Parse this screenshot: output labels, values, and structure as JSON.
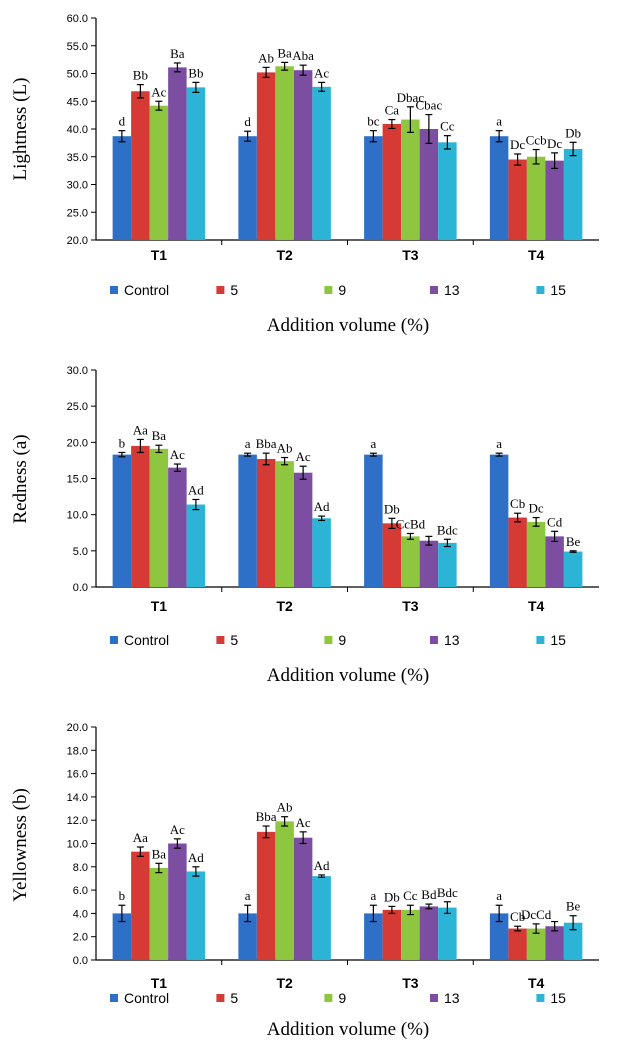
{
  "colors": {
    "Control": "#2e6fc7",
    "5": "#d63a34",
    "9": "#8ec63f",
    "13": "#7b4ea2",
    "15": "#2cb4d6"
  },
  "chart_data": [
    {
      "type": "bar",
      "ylabel": "Lightness (L)",
      "xlabel": "Addition volume (%)",
      "ylim": [
        20,
        60
      ],
      "yticks": [
        "20.0",
        "25.0",
        "30.0",
        "35.0",
        "40.0",
        "45.0",
        "50.0",
        "55.0",
        "60.0"
      ],
      "categories": [
        "T1",
        "T2",
        "T3",
        "T4"
      ],
      "legend": "bottom",
      "series": [
        {
          "name": "Control",
          "values": [
            38.7,
            38.7,
            38.7,
            38.7
          ],
          "errors": [
            1.0,
            0.9,
            1.0,
            1.0
          ],
          "labels": [
            "d",
            "d",
            "bc",
            "a"
          ]
        },
        {
          "name": "5",
          "values": [
            46.8,
            50.2,
            40.9,
            34.5
          ],
          "errors": [
            1.2,
            0.9,
            0.8,
            1.0
          ],
          "labels": [
            "Bb",
            "Ab",
            "Ca",
            "Dc"
          ]
        },
        {
          "name": "9",
          "values": [
            44.2,
            51.3,
            41.7,
            35.0
          ],
          "errors": [
            0.8,
            0.7,
            2.3,
            1.3
          ],
          "labels": [
            "Ac",
            "Ba",
            "Dbac",
            "Ccb"
          ]
        },
        {
          "name": "13",
          "values": [
            51.1,
            50.6,
            40.0,
            34.3
          ],
          "errors": [
            0.8,
            0.9,
            2.6,
            1.4
          ],
          "labels": [
            "Ba",
            "Aba",
            "Cbac",
            "Dc"
          ]
        },
        {
          "name": "15",
          "values": [
            47.5,
            47.6,
            37.6,
            36.4
          ],
          "errors": [
            0.9,
            0.8,
            1.2,
            1.2
          ],
          "labels": [
            "Bb",
            "Ac",
            "Cc",
            "Db"
          ]
        }
      ]
    },
    {
      "type": "bar",
      "ylabel": "Redness (a)",
      "xlabel": "Addition volume (%)",
      "ylim": [
        0,
        30
      ],
      "yticks": [
        "0.0",
        "5.0",
        "10.0",
        "15.0",
        "20.0",
        "25.0",
        "30.0"
      ],
      "categories": [
        "T1",
        "T2",
        "T3",
        "T4"
      ],
      "legend": "bottom",
      "series": [
        {
          "name": "Control",
          "values": [
            18.3,
            18.3,
            18.3,
            18.3
          ],
          "errors": [
            0.3,
            0.2,
            0.2,
            0.2
          ],
          "labels": [
            "b",
            "a",
            "a",
            "a"
          ]
        },
        {
          "name": "5",
          "values": [
            19.5,
            17.7,
            8.8,
            9.6
          ],
          "errors": [
            0.9,
            0.8,
            0.7,
            0.6
          ],
          "labels": [
            "Aa",
            "Bba",
            "Db",
            "Cb"
          ]
        },
        {
          "name": "9",
          "values": [
            19.1,
            17.4,
            7.0,
            9.0
          ],
          "errors": [
            0.5,
            0.5,
            0.4,
            0.6
          ],
          "labels": [
            "Ba",
            "Ab",
            "CcBd",
            "Dc"
          ]
        },
        {
          "name": "13",
          "values": [
            16.5,
            15.8,
            6.4,
            7.0
          ],
          "errors": [
            0.5,
            0.9,
            0.6,
            0.7
          ],
          "labels": [
            "Ac",
            "Ac",
            "",
            "Cd"
          ]
        },
        {
          "name": "15",
          "values": [
            11.4,
            9.5,
            6.1,
            4.9
          ],
          "errors": [
            0.7,
            0.3,
            0.5,
            0.1
          ],
          "labels": [
            "Ad",
            "Ad",
            "Bdc",
            "Be"
          ]
        }
      ]
    },
    {
      "type": "bar",
      "ylabel": "Yellowness (b)",
      "xlabel": "Addition volume (%)",
      "ylim": [
        0,
        20
      ],
      "yticks": [
        "0.0",
        "2.0",
        "4.0",
        "6.0",
        "8.0",
        "10.0",
        "12.0",
        "14.0",
        "16.0",
        "18.0",
        "20.0"
      ],
      "categories": [
        "T1",
        "T2",
        "T3",
        "T4"
      ],
      "legend": "bottom",
      "series": [
        {
          "name": "Control",
          "values": [
            4.0,
            4.0,
            4.0,
            4.0
          ],
          "errors": [
            0.7,
            0.7,
            0.7,
            0.7
          ],
          "labels": [
            "b",
            "a",
            "a",
            "a"
          ]
        },
        {
          "name": "5",
          "values": [
            9.3,
            11.0,
            4.3,
            2.7
          ],
          "errors": [
            0.4,
            0.5,
            0.3,
            0.2
          ],
          "labels": [
            "Aa",
            "Bba",
            "Db",
            "Cb"
          ]
        },
        {
          "name": "9",
          "values": [
            7.9,
            11.9,
            4.3,
            2.7
          ],
          "errors": [
            0.4,
            0.4,
            0.4,
            0.4
          ],
          "labels": [
            "Ba",
            "Ab",
            "Cc",
            "DcCd"
          ]
        },
        {
          "name": "13",
          "values": [
            10.0,
            10.5,
            4.6,
            2.9
          ],
          "errors": [
            0.4,
            0.5,
            0.2,
            0.4
          ],
          "labels": [
            "Ac",
            "Ac",
            "Bd",
            ""
          ]
        },
        {
          "name": "15",
          "values": [
            7.6,
            7.2,
            4.5,
            3.2
          ],
          "errors": [
            0.4,
            0.1,
            0.5,
            0.6
          ],
          "labels": [
            "Ad",
            "Ad",
            "Bdc",
            "Be"
          ]
        }
      ]
    }
  ]
}
